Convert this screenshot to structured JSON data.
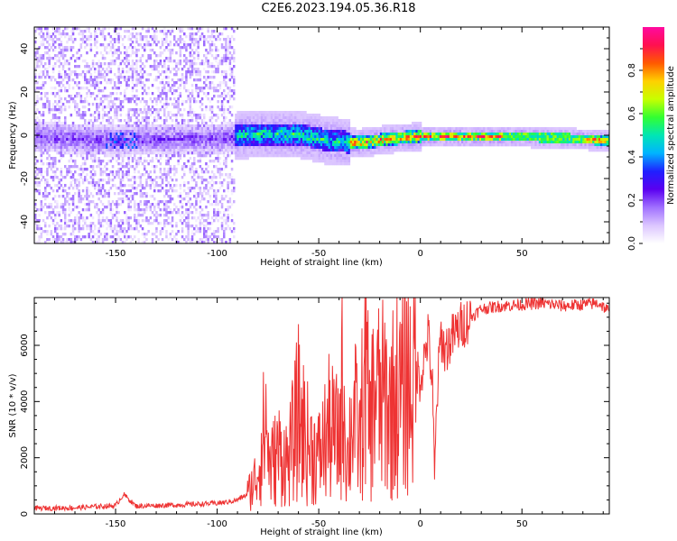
{
  "page_title": "C2E6.2023.194.05.36.R18",
  "colors": {
    "snr_line": "#ee3333",
    "axis": "#000000",
    "colormap": [
      "#ffffff",
      "#dcc6ff",
      "#a070ff",
      "#5a00f0",
      "#2020ff",
      "#00b4ff",
      "#00e6b4",
      "#32ff32",
      "#c8ff00",
      "#ffd000",
      "#ff5a00",
      "#ff1050",
      "#ff0aa0"
    ]
  },
  "chart_data": [
    {
      "type": "heatmap",
      "title": "C2E6.2023.194.05.36.R18",
      "xlabel": "Height of straight line (km)",
      "ylabel": "Frequency (Hz)",
      "xlim": [
        -190,
        93
      ],
      "ylim": [
        -50,
        50
      ],
      "xticks": [
        -150,
        -100,
        -50,
        0,
        50
      ],
      "yticks": [
        -40,
        -20,
        0,
        20,
        40
      ],
      "colorbar": {
        "label": "Normalized spectral amplitude",
        "range": [
          0,
          1
        ],
        "ticks": [
          "0.0",
          "0.2",
          "0.4",
          "0.6",
          "0.8"
        ]
      },
      "center_line": [
        {
          "x": -190,
          "y": 0
        },
        {
          "x": -150,
          "y": -2
        },
        {
          "x": -120,
          "y": -1
        },
        {
          "x": -100,
          "y": -1
        },
        {
          "x": -85,
          "y": 1
        },
        {
          "x": -60,
          "y": 1
        },
        {
          "x": -45,
          "y": -2
        },
        {
          "x": -30,
          "y": -3
        },
        {
          "x": -15,
          "y": -1
        },
        {
          "x": 0,
          "y": 0
        },
        {
          "x": 20,
          "y": 0
        },
        {
          "x": 50,
          "y": 0
        },
        {
          "x": 75,
          "y": -1
        },
        {
          "x": 93,
          "y": -2
        }
      ]
    },
    {
      "type": "line",
      "xlabel": "Height of straight line (km)",
      "ylabel": "SNR (10 * v/v)",
      "xlim": [
        -190,
        93
      ],
      "ylim": [
        0,
        7700
      ],
      "xticks": [
        -150,
        -100,
        -50,
        0,
        50
      ],
      "yticks": [
        0,
        2000,
        4000,
        6000
      ],
      "series": [
        {
          "x": [
            -190,
            -170,
            -150,
            -146,
            -140,
            -130,
            -120,
            -110,
            -100,
            -95,
            -90,
            -85,
            -82,
            -80,
            -78,
            -76,
            -74,
            -70,
            -65,
            -60,
            -55,
            -50,
            -45,
            -40,
            -38,
            -36,
            -33,
            -30,
            -27,
            -25,
            -22,
            -20,
            -17,
            -15,
            -12,
            -10,
            -7,
            -5,
            -2,
            0,
            2,
            4,
            6,
            7,
            8,
            10,
            12,
            15,
            20,
            25,
            30,
            40,
            50,
            60,
            70,
            80,
            88,
            93
          ],
          "values": [
            200,
            220,
            300,
            700,
            280,
            300,
            320,
            350,
            380,
            420,
            500,
            700,
            1100,
            1500,
            2400,
            3300,
            1600,
            2200,
            1800,
            3600,
            2400,
            2000,
            3000,
            2600,
            4800,
            1800,
            3800,
            2400,
            5200,
            3000,
            4600,
            3900,
            4200,
            3600,
            4400,
            4000,
            5000,
            4600,
            5200,
            4800,
            5600,
            6400,
            4400,
            1100,
            3800,
            6400,
            5800,
            6200,
            6700,
            7000,
            7300,
            7400,
            7450,
            7500,
            7400,
            7450,
            7500,
            7200
          ]
        }
      ]
    }
  ]
}
